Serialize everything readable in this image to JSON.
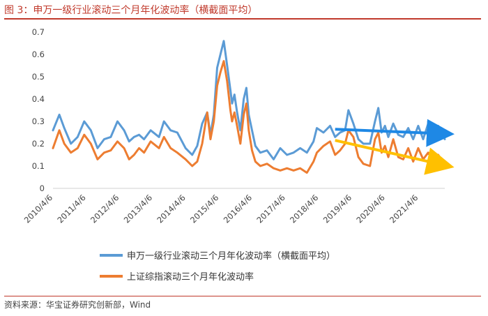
{
  "title": "图 3：申万一级行业滚动三个月年化波动率（横截面平均）",
  "source": "资料来源：华宝证券研究创新部，Wind",
  "colors": {
    "series_blue": "#5b9bd5",
    "series_orange": "#ed7d31",
    "arrow_blue": "#1e88e5",
    "arrow_yellow": "#ffc000",
    "title_red": "#c0392b"
  },
  "chart_data": {
    "type": "line",
    "ylim": [
      0,
      0.7
    ],
    "yticks": [
      "0",
      "0.1",
      "0.2",
      "0.3",
      "0.4",
      "0.5",
      "0.6",
      "0.7"
    ],
    "xticks": [
      "2010/4/6",
      "2011/4/6",
      "2012/4/6",
      "2013/4/6",
      "2014/4/6",
      "2015/4/6",
      "2016/4/6",
      "2017/4/6",
      "2018/4/6",
      "2019/4/6",
      "2020/4/6",
      "2021/4/6"
    ],
    "xlim": [
      2010.26,
      2022.05
    ],
    "grid": false,
    "legend_position": "bottom",
    "series": [
      {
        "name": "申万一级行业滚动三个月年化波动率（横截面平均）",
        "x": [
          2010.26,
          2010.45,
          2010.6,
          2010.8,
          2011.0,
          2011.2,
          2011.4,
          2011.6,
          2011.8,
          2012.0,
          2012.2,
          2012.4,
          2012.55,
          2012.7,
          2012.85,
          2013.0,
          2013.2,
          2013.45,
          2013.6,
          2013.8,
          2014.0,
          2014.25,
          2014.45,
          2014.6,
          2014.75,
          2014.9,
          2015.0,
          2015.1,
          2015.2,
          2015.3,
          2015.4,
          2015.5,
          2015.6,
          2015.65,
          2015.72,
          2015.8,
          2015.9,
          2016.0,
          2016.08,
          2016.15,
          2016.25,
          2016.35,
          2016.5,
          2016.7,
          2016.9,
          2017.1,
          2017.3,
          2017.5,
          2017.7,
          2017.9,
          2018.1,
          2018.2,
          2018.4,
          2018.6,
          2018.75,
          2018.9,
          2019.05,
          2019.15,
          2019.3,
          2019.45,
          2019.6,
          2019.8,
          2019.95,
          2020.05,
          2020.15,
          2020.25,
          2020.35,
          2020.5,
          2020.65,
          2020.8,
          2020.95,
          2021.1,
          2021.25,
          2021.4,
          2021.55,
          2021.7,
          2021.85,
          2022.05
        ],
        "values": [
          0.26,
          0.33,
          0.27,
          0.2,
          0.23,
          0.3,
          0.26,
          0.18,
          0.22,
          0.23,
          0.3,
          0.26,
          0.21,
          0.23,
          0.24,
          0.22,
          0.26,
          0.23,
          0.3,
          0.26,
          0.25,
          0.18,
          0.15,
          0.19,
          0.29,
          0.34,
          0.24,
          0.33,
          0.54,
          0.6,
          0.66,
          0.55,
          0.44,
          0.38,
          0.42,
          0.34,
          0.26,
          0.4,
          0.45,
          0.33,
          0.26,
          0.19,
          0.16,
          0.17,
          0.13,
          0.18,
          0.15,
          0.16,
          0.18,
          0.16,
          0.21,
          0.27,
          0.25,
          0.28,
          0.23,
          0.25,
          0.26,
          0.35,
          0.29,
          0.22,
          0.2,
          0.2,
          0.3,
          0.36,
          0.25,
          0.28,
          0.23,
          0.29,
          0.24,
          0.23,
          0.27,
          0.22,
          0.28,
          0.22,
          0.29,
          0.23,
          0.28,
          0.22
        ]
      },
      {
        "name": "上证综指滚动三个月年化波动率",
        "x": [
          2010.26,
          2010.45,
          2010.6,
          2010.8,
          2011.0,
          2011.2,
          2011.4,
          2011.6,
          2011.8,
          2012.0,
          2012.2,
          2012.4,
          2012.55,
          2012.7,
          2012.85,
          2013.0,
          2013.2,
          2013.45,
          2013.6,
          2013.8,
          2014.0,
          2014.25,
          2014.45,
          2014.6,
          2014.75,
          2014.9,
          2015.0,
          2015.1,
          2015.2,
          2015.3,
          2015.4,
          2015.5,
          2015.6,
          2015.65,
          2015.72,
          2015.8,
          2015.9,
          2016.0,
          2016.08,
          2016.15,
          2016.25,
          2016.35,
          2016.5,
          2016.7,
          2016.9,
          2017.1,
          2017.3,
          2017.5,
          2017.7,
          2017.9,
          2018.1,
          2018.2,
          2018.4,
          2018.6,
          2018.75,
          2018.9,
          2019.05,
          2019.15,
          2019.3,
          2019.45,
          2019.6,
          2019.8,
          2019.95,
          2020.05,
          2020.15,
          2020.25,
          2020.35,
          2020.5,
          2020.65,
          2020.8,
          2020.95,
          2021.1,
          2021.25,
          2021.4,
          2021.55,
          2021.7,
          2021.85,
          2022.05
        ],
        "values": [
          0.18,
          0.26,
          0.2,
          0.16,
          0.18,
          0.24,
          0.2,
          0.13,
          0.16,
          0.17,
          0.21,
          0.18,
          0.13,
          0.15,
          0.18,
          0.16,
          0.21,
          0.18,
          0.23,
          0.18,
          0.16,
          0.13,
          0.1,
          0.12,
          0.2,
          0.34,
          0.22,
          0.3,
          0.46,
          0.52,
          0.57,
          0.48,
          0.35,
          0.3,
          0.34,
          0.28,
          0.2,
          0.33,
          0.38,
          0.26,
          0.17,
          0.12,
          0.1,
          0.11,
          0.09,
          0.08,
          0.09,
          0.08,
          0.09,
          0.07,
          0.12,
          0.16,
          0.19,
          0.21,
          0.15,
          0.17,
          0.2,
          0.26,
          0.23,
          0.14,
          0.11,
          0.1,
          0.22,
          0.25,
          0.16,
          0.19,
          0.14,
          0.22,
          0.14,
          0.13,
          0.18,
          0.12,
          0.18,
          0.13,
          0.16,
          0.12,
          0.15,
          0.11
        ]
      }
    ],
    "annotations": [
      {
        "type": "arrow",
        "color": "#1e88e5",
        "from": [
          2018.75,
          0.265
        ],
        "to": [
          2022.05,
          0.245
        ]
      },
      {
        "type": "arrow",
        "color": "#ffc000",
        "from": [
          2018.75,
          0.215
        ],
        "to": [
          2022.05,
          0.105
        ]
      }
    ]
  }
}
